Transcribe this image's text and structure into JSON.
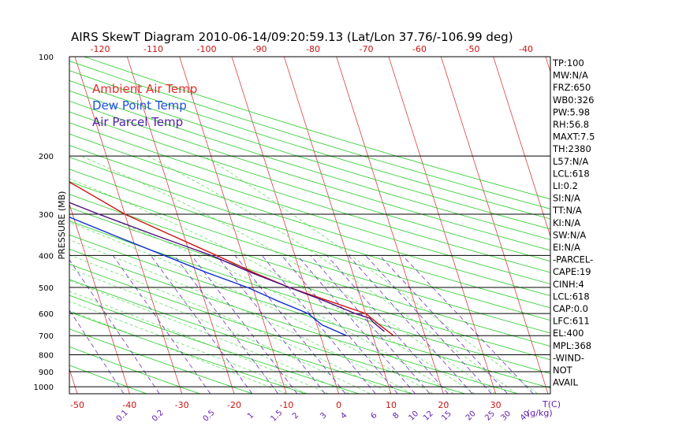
{
  "chart_data": {
    "type": "line",
    "title": "AIRS SkewT Diagram 2010-06-14/09:20:59.13 (Lat/Lon 37.76/-106.99 deg)",
    "ylabel": "PRESSURE (MB)",
    "xlabel": "T(C)",
    "mixing_ratio_unit": "(g/kg)",
    "y_scale": "log",
    "ylim": [
      1050,
      100
    ],
    "bottom_temp_range": [
      -50,
      40
    ],
    "top_temp_range": [
      -120,
      -40
    ],
    "pressure_ticks": [
      100,
      200,
      300,
      400,
      500,
      600,
      700,
      800,
      900,
      1000
    ],
    "bottom_temp_ticks": [
      -50,
      -40,
      -30,
      -20,
      -10,
      0,
      10,
      20,
      30
    ],
    "top_temp_ticks": [
      -120,
      -110,
      -100,
      -90,
      -80,
      -70,
      -60,
      -50,
      -40
    ],
    "mixing_ratio_ticks": [
      "0.1",
      "0.2",
      "0.5",
      "1",
      "1.5",
      "2",
      "3",
      "4",
      "6",
      "8",
      "10",
      "12",
      "15",
      "20",
      "25",
      "30",
      "40"
    ],
    "legend": [
      {
        "name": "Ambient Air Temp",
        "color": "#e03030"
      },
      {
        "name": "Dew Point Temp",
        "color": "#2050e0"
      },
      {
        "name": "Air Parcel Temp",
        "color": "#5020a0"
      }
    ],
    "legend_position": "top-left",
    "series": [
      {
        "name": "Ambient Air Temp",
        "color": "#cc1111",
        "points": [
          [
            700,
            14
          ],
          [
            650,
            12
          ],
          [
            600,
            10
          ],
          [
            500,
            -3
          ],
          [
            450,
            -9
          ],
          [
            400,
            -15
          ],
          [
            350,
            -22
          ],
          [
            300,
            -30
          ],
          [
            250,
            -37
          ],
          [
            200,
            -46
          ],
          [
            170,
            -54
          ],
          [
            150,
            -60
          ],
          [
            130,
            -64
          ],
          [
            110,
            -71
          ],
          [
            100,
            -74
          ]
        ]
      },
      {
        "name": "Dew Point Temp",
        "color": "#1030d0",
        "points": [
          [
            700,
            5
          ],
          [
            650,
            1
          ],
          [
            600,
            -1
          ],
          [
            550,
            -6
          ],
          [
            500,
            -11
          ],
          [
            450,
            -18
          ],
          [
            400,
            -25
          ],
          [
            350,
            -33
          ],
          [
            300,
            -42
          ],
          [
            250,
            -52
          ],
          [
            200,
            -64
          ],
          [
            170,
            -71
          ],
          [
            150,
            -78
          ],
          [
            130,
            -85
          ],
          [
            100,
            -98
          ]
        ]
      },
      {
        "name": "Air Parcel Temp",
        "color": "#501080",
        "points": [
          [
            680,
            12.5
          ],
          [
            640,
            11
          ],
          [
            620,
            10.5
          ],
          [
            600,
            8
          ],
          [
            550,
            3
          ],
          [
            500,
            -3
          ],
          [
            450,
            -9.5
          ],
          [
            400,
            -16
          ],
          [
            350,
            -25
          ],
          [
            300,
            -35
          ],
          [
            250,
            -46
          ],
          [
            200,
            -59
          ],
          [
            150,
            -78
          ],
          [
            120,
            -94
          ],
          [
            100,
            -108
          ]
        ]
      }
    ]
  },
  "sidebar": [
    "TP:100",
    "MW:N/A",
    "FRZ:650",
    "WB0:326",
    "PW:5.98",
    "RH:56.8",
    "MAXT:7.5",
    "TH:2380",
    "L57:N/A",
    "LCL:618",
    "LI:0.2",
    "SI:N/A",
    "TT:N/A",
    "KI:N/A",
    "SW:N/A",
    "EI:N/A",
    "-PARCEL-",
    "CAPE:19",
    "CINH:4",
    "LCL:618",
    "CAP:0.0",
    "LFC:611",
    "EL:400",
    "MPL:368",
    "-WIND-",
    "NOT",
    "AVAIL"
  ],
  "colors": {
    "isotherm": "#d84040",
    "dry_adiabat": "#22cc22",
    "moist_adiabat": "#66dd66",
    "mixing_ratio": "#7030c0",
    "isobar": "#000000",
    "axis_text": "#000000",
    "tick_text": "#cc1111",
    "mixing_text": "#6020b0"
  }
}
